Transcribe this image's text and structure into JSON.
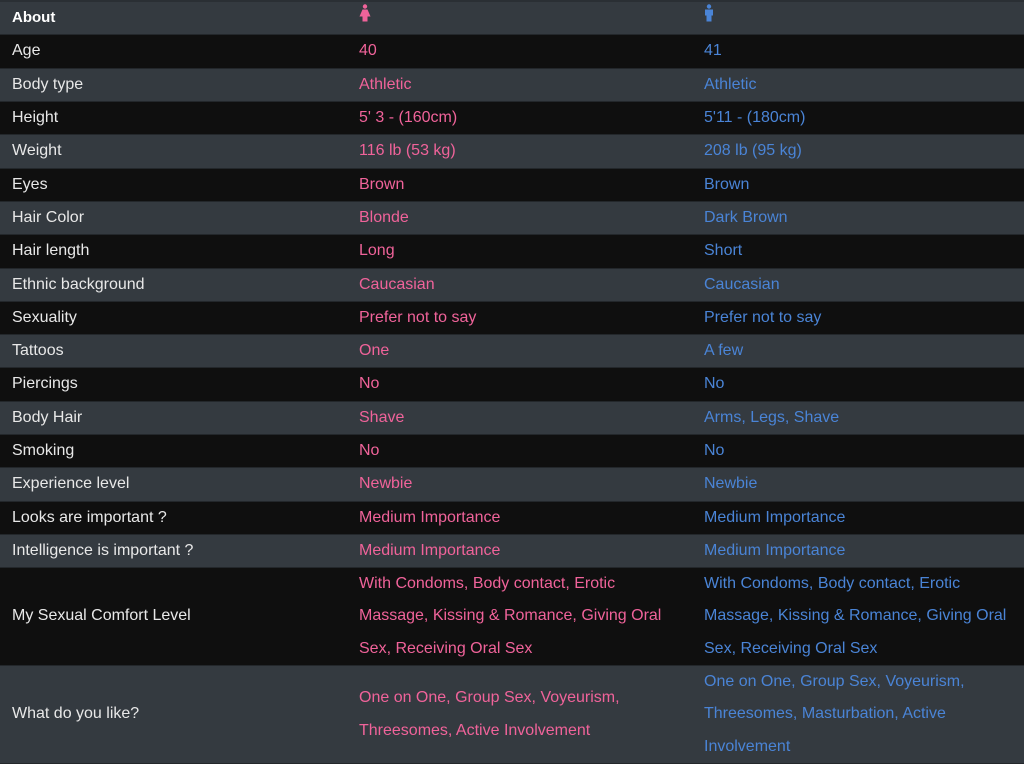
{
  "header": {
    "about": "About",
    "female_icon": "female-icon",
    "male_icon": "male-icon"
  },
  "colors": {
    "female": "#f0639a",
    "male": "#4a84d6",
    "row_light": "#343a40",
    "row_dark": "#0f0f0f"
  },
  "rows": [
    {
      "label": "Age",
      "female": "40",
      "male": "41"
    },
    {
      "label": "Body type",
      "female": "Athletic",
      "male": "Athletic"
    },
    {
      "label": "Height",
      "female": "5' 3 - (160cm)",
      "male": "5'11 - (180cm)"
    },
    {
      "label": "Weight",
      "female": "116 lb (53 kg)",
      "male": "208 lb (95 kg)"
    },
    {
      "label": "Eyes",
      "female": "Brown",
      "male": "Brown"
    },
    {
      "label": "Hair Color",
      "female": "Blonde",
      "male": "Dark Brown"
    },
    {
      "label": "Hair length",
      "female": "Long",
      "male": "Short"
    },
    {
      "label": "Ethnic background",
      "female": "Caucasian",
      "male": "Caucasian"
    },
    {
      "label": "Sexuality",
      "female": "Prefer not to say",
      "male": "Prefer not to say"
    },
    {
      "label": "Tattoos",
      "female": "One",
      "male": "A few"
    },
    {
      "label": "Piercings",
      "female": "No",
      "male": "No"
    },
    {
      "label": "Body Hair",
      "female": "Shave",
      "male": "Arms, Legs, Shave"
    },
    {
      "label": "Smoking",
      "female": "No",
      "male": "No"
    },
    {
      "label": "Experience level",
      "female": "Newbie",
      "male": "Newbie"
    },
    {
      "label": "Looks are important ?",
      "female": "Medium Importance",
      "male": "Medium Importance"
    },
    {
      "label": "Intelligence is important ?",
      "female": "Medium Importance",
      "male": "Medium Importance"
    },
    {
      "label": "My Sexual Comfort Level",
      "female": "With Condoms, Body contact, Erotic Massage, Kissing & Romance, Giving Oral Sex, Receiving Oral Sex",
      "male": "With Condoms, Body contact, Erotic Massage, Kissing & Romance, Giving Oral Sex, Receiving Oral Sex"
    },
    {
      "label": "What do you like?",
      "female": "One on One, Group Sex, Voyeurism, Threesomes, Active Involvement",
      "male": "One on One, Group Sex, Voyeurism, Threesomes, Masturbation, Active Involvement"
    }
  ]
}
